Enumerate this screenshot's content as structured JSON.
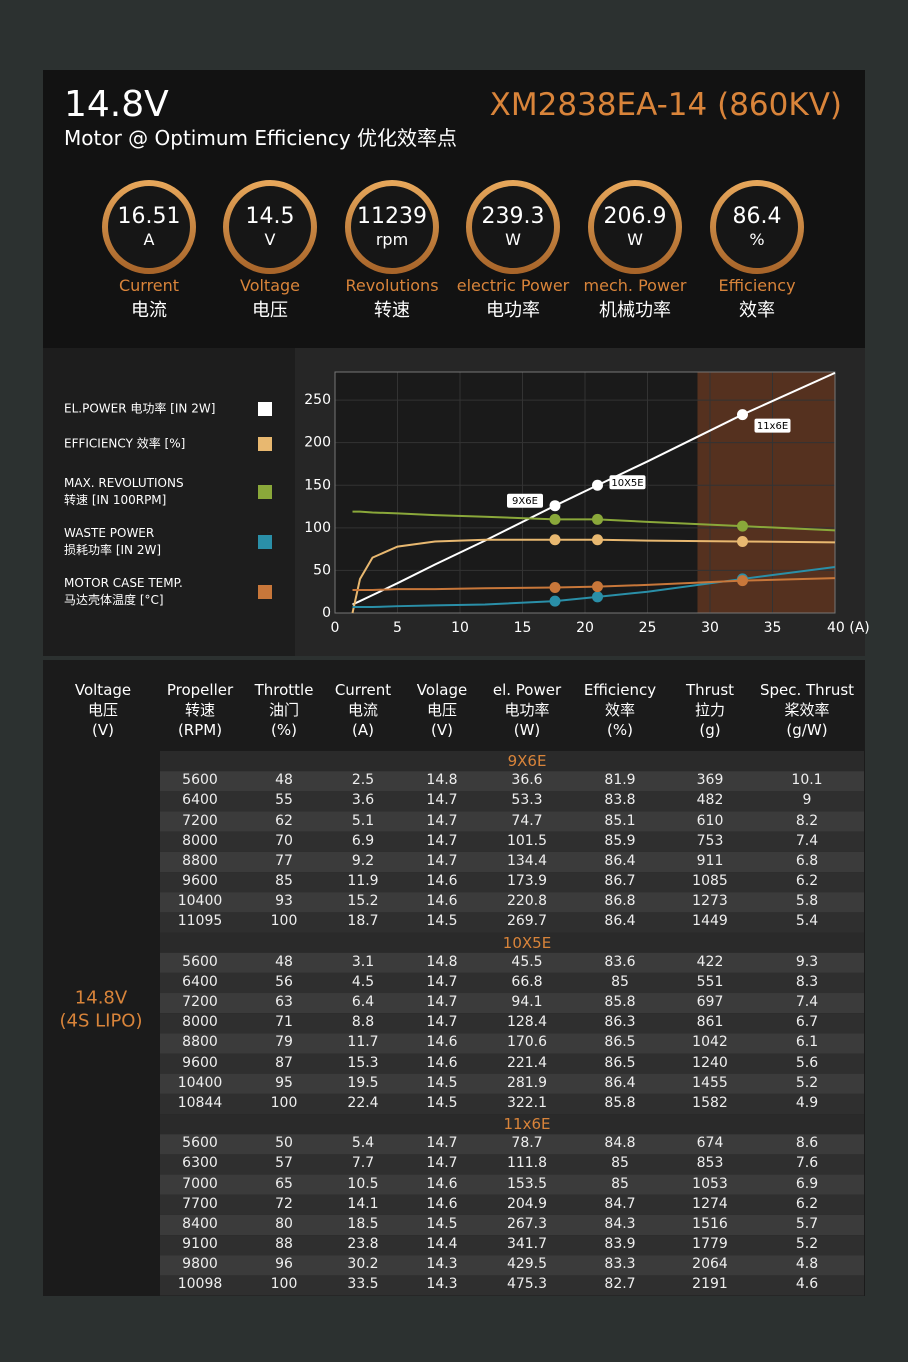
{
  "header": {
    "voltage": "14.8V",
    "subtitle": "Motor @ Optimum Efficiency  优化效率点",
    "model": "XM2838EA-14 (860KV)"
  },
  "gauges": [
    {
      "value": "16.51",
      "unit": "A",
      "label_en": "Current",
      "label_cn": "电流"
    },
    {
      "value": "14.5",
      "unit": "V",
      "label_en": "Voltage",
      "label_cn": "电压"
    },
    {
      "value": "11239",
      "unit": "rpm",
      "label_en": "Revolutions",
      "label_cn": "转速"
    },
    {
      "value": "239.3",
      "unit": "W",
      "label_en": "electric Power",
      "label_cn": "电功率"
    },
    {
      "value": "206.9",
      "unit": "W",
      "label_en": "mech. Power",
      "label_cn": "机械功率"
    },
    {
      "value": "86.4",
      "unit": "%",
      "label_en": "Efficiency",
      "label_cn": "效率"
    }
  ],
  "chart_data": {
    "type": "line",
    "xlim": [
      0,
      40
    ],
    "ylim": [
      0,
      283
    ],
    "xticks": [
      0,
      5,
      10,
      15,
      20,
      25,
      30,
      35,
      {
        "value": 40,
        "label": "40 (A)"
      }
    ],
    "yticks": [
      0,
      50,
      100,
      150,
      200,
      250
    ],
    "grid": true,
    "highlight_x": [
      29,
      40
    ],
    "highlight_color": "#6a3a22",
    "x": [
      1.4,
      2,
      3,
      5,
      8,
      12,
      17.6,
      21,
      25,
      32.6,
      40
    ],
    "point_labels": [
      null,
      null,
      null,
      null,
      null,
      null,
      "9X6E",
      "10X5E",
      null,
      "11x6E",
      null
    ],
    "series": [
      {
        "name": "EL.POWER 电功率 [IN 2W]",
        "color": "#ffffff",
        "values": [
          10,
          14,
          21,
          35,
          57,
          85,
          126,
          150,
          178,
          233,
          282
        ]
      },
      {
        "name": "EFFICIENCY 效率 [%]",
        "color": "#e8b870",
        "values": [
          0,
          40,
          65,
          78,
          84,
          86,
          86,
          86,
          85,
          84,
          83
        ]
      },
      {
        "name": "MAX. REVOLUTIONS\n转速 [IN 100RPM]",
        "color": "#8aa83a",
        "values": [
          119,
          119,
          118,
          117,
          115,
          113,
          110,
          110,
          107,
          102,
          97
        ]
      },
      {
        "name": "WASTE POWER\n损耗功率 [IN 2W]",
        "color": "#2a8fa8",
        "values": [
          7,
          7,
          7,
          8,
          9,
          10,
          14,
          19,
          25,
          40,
          54
        ]
      },
      {
        "name": "MOTOR CASE TEMP.\n马达壳体温度 [°C]",
        "color": "#c8773a",
        "values": [
          27,
          27,
          27,
          28,
          28,
          29,
          30,
          31,
          33,
          38,
          41
        ]
      }
    ]
  },
  "table": {
    "headers": [
      "Voltage\n电压\n(V)",
      "Propeller\n转速\n(RPM)",
      "Throttle\n油门\n(%)",
      "Current\n电流\n(A)",
      "Volage\n电压\n(V)",
      "el. Power\n电功率\n(W)",
      "Efficiency\n效率\n(%)",
      "Thrust\n拉力\n(g)",
      "Spec. Thrust\n桨效率\n(g/W)"
    ],
    "voltage": "14.8V\n(4S LIPO)",
    "groups": [
      {
        "name": "9X6E",
        "rows": [
          [
            "5600",
            "48",
            "2.5",
            "14.8",
            "36.6",
            "81.9",
            "369",
            "10.1"
          ],
          [
            "6400",
            "55",
            "3.6",
            "14.7",
            "53.3",
            "83.8",
            "482",
            "9"
          ],
          [
            "7200",
            "62",
            "5.1",
            "14.7",
            "74.7",
            "85.1",
            "610",
            "8.2"
          ],
          [
            "8000",
            "70",
            "6.9",
            "14.7",
            "101.5",
            "85.9",
            "753",
            "7.4"
          ],
          [
            "8800",
            "77",
            "9.2",
            "14.7",
            "134.4",
            "86.4",
            "911",
            "6.8"
          ],
          [
            "9600",
            "85",
            "11.9",
            "14.6",
            "173.9",
            "86.7",
            "1085",
            "6.2"
          ],
          [
            "10400",
            "93",
            "15.2",
            "14.6",
            "220.8",
            "86.8",
            "1273",
            "5.8"
          ],
          [
            "11095",
            "100",
            "18.7",
            "14.5",
            "269.7",
            "86.4",
            "1449",
            "5.4"
          ]
        ]
      },
      {
        "name": "10X5E",
        "rows": [
          [
            "5600",
            "48",
            "3.1",
            "14.8",
            "45.5",
            "83.6",
            "422",
            "9.3"
          ],
          [
            "6400",
            "56",
            "4.5",
            "14.7",
            "66.8",
            "85",
            "551",
            "8.3"
          ],
          [
            "7200",
            "63",
            "6.4",
            "14.7",
            "94.1",
            "85.8",
            "697",
            "7.4"
          ],
          [
            "8000",
            "71",
            "8.8",
            "14.7",
            "128.4",
            "86.3",
            "861",
            "6.7"
          ],
          [
            "8800",
            "79",
            "11.7",
            "14.6",
            "170.6",
            "86.5",
            "1042",
            "6.1"
          ],
          [
            "9600",
            "87",
            "15.3",
            "14.6",
            "221.4",
            "86.5",
            "1240",
            "5.6"
          ],
          [
            "10400",
            "95",
            "19.5",
            "14.5",
            "281.9",
            "86.4",
            "1455",
            "5.2"
          ],
          [
            "10844",
            "100",
            "22.4",
            "14.5",
            "322.1",
            "85.8",
            "1582",
            "4.9"
          ]
        ]
      },
      {
        "name": "11x6E",
        "rows": [
          [
            "5600",
            "50",
            "5.4",
            "14.7",
            "78.7",
            "84.8",
            "674",
            "8.6"
          ],
          [
            "6300",
            "57",
            "7.7",
            "14.7",
            "111.8",
            "85",
            "853",
            "7.6"
          ],
          [
            "7000",
            "65",
            "10.5",
            "14.6",
            "153.5",
            "85",
            "1053",
            "6.9"
          ],
          [
            "7700",
            "72",
            "14.1",
            "14.6",
            "204.9",
            "84.7",
            "1274",
            "6.2"
          ],
          [
            "8400",
            "80",
            "18.5",
            "14.5",
            "267.3",
            "84.3",
            "1516",
            "5.7"
          ],
          [
            "9100",
            "88",
            "23.8",
            "14.4",
            "341.7",
            "83.9",
            "1779",
            "5.2"
          ],
          [
            "9800",
            "96",
            "30.2",
            "14.3",
            "429.5",
            "83.3",
            "2064",
            "4.8"
          ],
          [
            "10098",
            "100",
            "33.5",
            "14.3",
            "475.3",
            "82.7",
            "2191",
            "4.6"
          ]
        ]
      }
    ]
  }
}
